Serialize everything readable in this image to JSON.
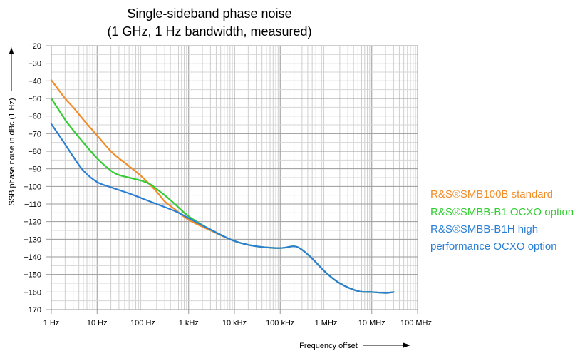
{
  "chart_data": {
    "type": "line",
    "title": "Single-sideband phase noise",
    "subtitle": "(1 GHz, 1 Hz bandwidth, measured)",
    "xlabel": "Frequency offset",
    "ylabel": "SSB phase noise in dBc (1 Hz)",
    "x_scale": "log",
    "xlim": [
      1,
      100000000
    ],
    "ylim": [
      -170,
      -20
    ],
    "grid": true,
    "x_tick_values": [
      1,
      10,
      100,
      1000,
      10000,
      100000,
      1000000,
      10000000,
      100000000
    ],
    "x_tick_labels": [
      "1 Hz",
      "10 Hz",
      "100 Hz",
      "1 kHz",
      "10 kHz",
      "100 kHz",
      "1 MHz",
      "10 MHz",
      "100 MHz"
    ],
    "y_tick_values": [
      -20,
      -30,
      -40,
      -50,
      -60,
      -70,
      -80,
      -90,
      -100,
      -110,
      -120,
      -130,
      -140,
      -150,
      -160,
      -170
    ],
    "y_tick_labels": [
      "−20",
      "−30",
      "−40",
      "−50",
      "−60",
      "−70",
      "−80",
      "−90",
      "−100",
      "−110",
      "−120",
      "−130",
      "−140",
      "−150",
      "−160",
      "−170"
    ],
    "legend_position": "right",
    "series": [
      {
        "name": "R&S®SMB100B standard",
        "color": "#f28c28",
        "x": [
          1,
          2,
          3,
          5,
          10,
          20,
          30,
          50,
          100,
          200,
          300,
          500,
          1000,
          3000,
          10000,
          30000,
          100000,
          200000,
          300000,
          500000,
          1000000,
          2000000,
          5000000,
          10000000,
          20000000,
          30000000
        ],
        "y": [
          -39.5,
          -50,
          -55,
          -62,
          -71,
          -80,
          -84,
          -88.5,
          -95,
          -103,
          -108.5,
          -113,
          -119,
          -125,
          -131,
          -134,
          -135,
          -134,
          -136,
          -141,
          -149,
          -155,
          -159.5,
          -160,
          -160.5,
          -160
        ]
      },
      {
        "name": "R&S®SMBB-B1 OCXO option",
        "color": "#33cc33",
        "x": [
          1,
          2,
          3,
          5,
          10,
          20,
          30,
          50,
          100,
          150,
          200,
          300,
          500,
          1000,
          3000,
          10000,
          30000,
          100000,
          200000,
          300000,
          500000,
          1000000,
          2000000,
          5000000,
          10000000,
          20000000,
          30000000
        ],
        "y": [
          -50,
          -62,
          -68,
          -75,
          -84,
          -91,
          -93.5,
          -95,
          -97,
          -99,
          -101.5,
          -105,
          -110,
          -117,
          -124.5,
          -131,
          -134,
          -135,
          -134,
          -136,
          -141,
          -149,
          -155,
          -159.5,
          -160,
          -160.5,
          -160
        ]
      },
      {
        "name": "R&S®SMBB-B1H high performance OCXO option",
        "color": "#2a7fd4",
        "x": [
          1,
          2,
          3,
          5,
          10,
          20,
          50,
          100,
          200,
          500,
          1000,
          3000,
          10000,
          30000,
          100000,
          200000,
          300000,
          500000,
          1000000,
          2000000,
          5000000,
          10000000,
          20000000,
          30000000
        ],
        "y": [
          -64.5,
          -76,
          -83,
          -91,
          -97.5,
          -100.5,
          -104,
          -107,
          -110,
          -114,
          -118,
          -124.5,
          -131,
          -134,
          -135,
          -134,
          -136,
          -141,
          -149,
          -155,
          -159.5,
          -160,
          -160.5,
          -160
        ]
      }
    ]
  }
}
